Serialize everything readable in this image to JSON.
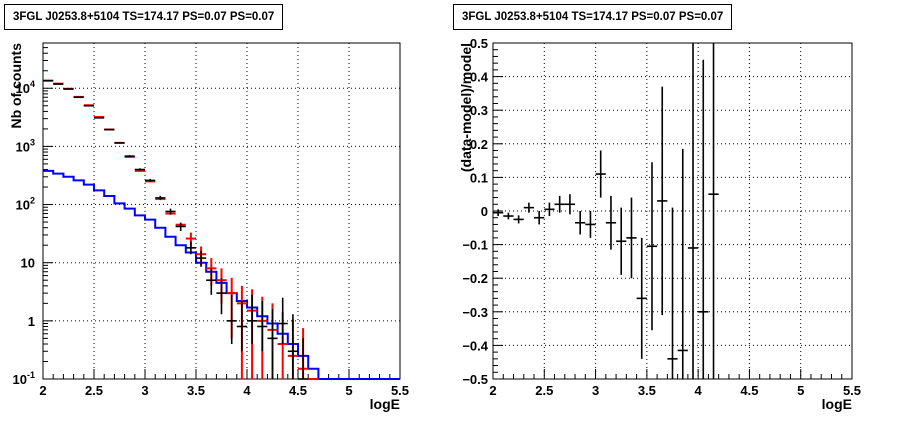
{
  "chart_data": [
    {
      "type": "histogram",
      "title": "3FGL J0253.8+5104 TS=174.17 PS=0.07 PS=0.07",
      "xlabel": "logE",
      "ylabel": "Nb of counts",
      "xlim": [
        2,
        5.5
      ],
      "ylim": [
        0.1,
        60000
      ],
      "yscale": "log",
      "grid": true,
      "x_ticks": [
        "2",
        "2.5",
        "3",
        "3.5",
        "4",
        "4.5",
        "5",
        "5.5"
      ],
      "y_ticks": [
        {
          "base": "10",
          "exp": "-1"
        },
        {
          "base": "1",
          "exp": ""
        },
        {
          "base": "10",
          "exp": ""
        },
        {
          "base": "10",
          "exp": "2"
        },
        {
          "base": "10",
          "exp": "3"
        },
        {
          "base": "10",
          "exp": "4"
        }
      ],
      "colors": {
        "data": "#000000",
        "model": "#ff0000",
        "background": "#0000ff"
      },
      "bin_width": 0.1,
      "series": [
        {
          "role": "data-points",
          "x": [
            2.05,
            2.15,
            2.25,
            2.35,
            2.45,
            2.55,
            2.65,
            2.75,
            2.85,
            2.95,
            3.05,
            3.15,
            3.25,
            3.35,
            3.45,
            3.55,
            3.65,
            3.75,
            3.85,
            3.95,
            4.05,
            4.15,
            4.25,
            4.35,
            4.45,
            4.55
          ],
          "y": [
            13500,
            11800,
            9700,
            7000,
            5000,
            3100,
            1950,
            1150,
            680,
            400,
            260,
            130,
            76,
            42,
            18,
            12,
            5,
            3,
            1,
            0.8,
            1,
            0.8,
            0.5,
            0.9,
            0.3,
            0.1
          ],
          "yerr_low": [
            80,
            80,
            80,
            80,
            70,
            60,
            40,
            30,
            25,
            20,
            16,
            11,
            9,
            7,
            4,
            3.5,
            2.2,
            1.7,
            0.6,
            0.5,
            0.6,
            0.5,
            0.4,
            0.5,
            0.3,
            0.1
          ],
          "yerr_high": [
            80,
            80,
            80,
            80,
            70,
            60,
            40,
            30,
            25,
            20,
            16,
            11,
            9,
            7,
            5,
            4,
            3,
            2.4,
            1.8,
            1.4,
            1.8,
            1.4,
            1.1,
            1.6,
            1,
            0.4
          ]
        },
        {
          "role": "model",
          "x": [
            2.05,
            2.15,
            2.25,
            2.35,
            2.45,
            2.55,
            2.65,
            2.75,
            2.85,
            2.95,
            3.05,
            3.15,
            3.25,
            3.35,
            3.45,
            3.55,
            3.65,
            3.75,
            3.85,
            3.95,
            4.05,
            4.15,
            4.25,
            4.35,
            4.45,
            4.55,
            4.65
          ],
          "y": [
            13500,
            12000,
            9800,
            7100,
            5100,
            3200,
            1950,
            1150,
            660,
            380,
            250,
            125,
            70,
            45,
            26,
            14,
            8,
            5,
            3,
            2,
            1.5,
            1,
            0.7,
            0.4,
            0.25,
            0.15,
            0.1
          ],
          "yerr": [
            0,
            0,
            0,
            0,
            0,
            0,
            0,
            0,
            0,
            0,
            0,
            0,
            0,
            0,
            7,
            5,
            4,
            3,
            2.5,
            2,
            2,
            1.6,
            1.3,
            1,
            0.8,
            0.6,
            0
          ]
        },
        {
          "role": "background-step",
          "edges": [
            2.0,
            2.1,
            2.2,
            2.3,
            2.4,
            2.5,
            2.6,
            2.7,
            2.8,
            2.9,
            3.0,
            3.1,
            3.2,
            3.3,
            3.4,
            3.5,
            3.6,
            3.7,
            3.8,
            3.9,
            4.0,
            4.1,
            4.2,
            4.3,
            4.4,
            4.5,
            4.6,
            4.7,
            5.5
          ],
          "y": [
            380,
            340,
            300,
            260,
            220,
            175,
            140,
            105,
            85,
            65,
            55,
            40,
            28,
            20,
            15,
            10,
            7,
            4.5,
            3,
            2.2,
            1.7,
            1.2,
            0.9,
            0.6,
            0.4,
            0.25,
            0.15,
            0.1
          ]
        }
      ]
    },
    {
      "type": "scatter",
      "title": "3FGL J0253.8+5104 TS=174.17 PS=0.07 PS=0.07",
      "xlabel": "logE",
      "ylabel": "(data-model)/model",
      "xlim": [
        2,
        5.5
      ],
      "ylim": [
        -0.5,
        0.5
      ],
      "grid": true,
      "x_ticks": [
        "2",
        "2.5",
        "3",
        "3.5",
        "4",
        "4.5",
        "5",
        "5.5"
      ],
      "y_ticks": [
        "0.5",
        "0.4",
        "0.3",
        "0.2",
        "0.1",
        "0",
        "-0.1",
        "-0.2",
        "-0.3",
        "-0.4",
        "-0.5"
      ],
      "series": [
        {
          "role": "residuals",
          "x": [
            2.05,
            2.15,
            2.25,
            2.35,
            2.45,
            2.55,
            2.65,
            2.75,
            2.85,
            2.95,
            3.05,
            3.15,
            3.25,
            3.35,
            3.45,
            3.55,
            3.65,
            3.75,
            3.85,
            3.95,
            4.05,
            4.15
          ],
          "y": [
            -0.005,
            -0.015,
            -0.025,
            0.01,
            -0.02,
            0.005,
            0.02,
            0.02,
            -0.035,
            -0.04,
            0.11,
            -0.035,
            -0.09,
            -0.08,
            -0.26,
            -0.105,
            0.03,
            -0.44,
            -0.415,
            -0.11,
            -0.3,
            0.05
          ],
          "yerr": [
            0.01,
            0.01,
            0.012,
            0.015,
            0.02,
            0.02,
            0.025,
            0.03,
            0.035,
            0.04,
            0.07,
            0.08,
            0.1,
            0.12,
            0.18,
            0.25,
            0.34,
            0.45,
            0.6,
            0.8,
            0.75,
            1.2
          ]
        }
      ]
    }
  ]
}
